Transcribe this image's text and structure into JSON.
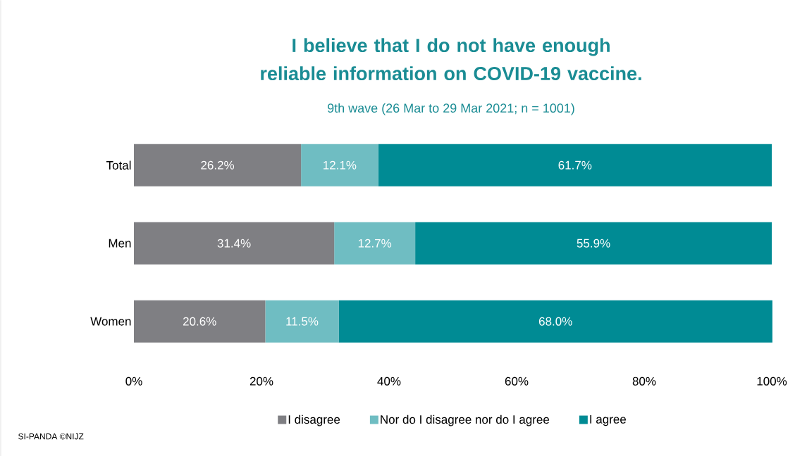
{
  "chart_data": {
    "type": "bar",
    "orientation": "horizontal",
    "stacked": true,
    "title": "I believe that I do not have enough reliable information on COVID-19 vaccine.",
    "subtitle": "9th wave (26 Mar to 29 Mar 2021; n = 1001)",
    "categories": [
      "Total",
      "Men",
      "Women"
    ],
    "series": [
      {
        "name": "I disagree",
        "color": "#7f7f83",
        "values": [
          26.2,
          31.4,
          20.6
        ],
        "value_labels": [
          "26.2%",
          "31.4%",
          "20.6%"
        ]
      },
      {
        "name": "Nor do I disagree nor do I agree",
        "color": "#6fbdc2",
        "values": [
          12.1,
          12.7,
          11.5
        ],
        "value_labels": [
          "12.1%",
          "12.7%",
          "11.5%"
        ]
      },
      {
        "name": "I agree",
        "color": "#008b94",
        "values": [
          61.7,
          55.9,
          68.0
        ],
        "value_labels": [
          "61.7%",
          "55.9%",
          "68.0%"
        ]
      }
    ],
    "xlim": [
      0,
      100
    ],
    "xticks": [
      {
        "value": 0,
        "label": "0%"
      },
      {
        "value": 20,
        "label": "20%"
      },
      {
        "value": 40,
        "label": "40%"
      },
      {
        "value": 60,
        "label": "60%"
      },
      {
        "value": 80,
        "label": "80%"
      },
      {
        "value": 100,
        "label": "100%"
      }
    ],
    "legend": "bottom",
    "grid": false,
    "annotations": [
      "SI-PANDA ©NIJZ"
    ]
  }
}
